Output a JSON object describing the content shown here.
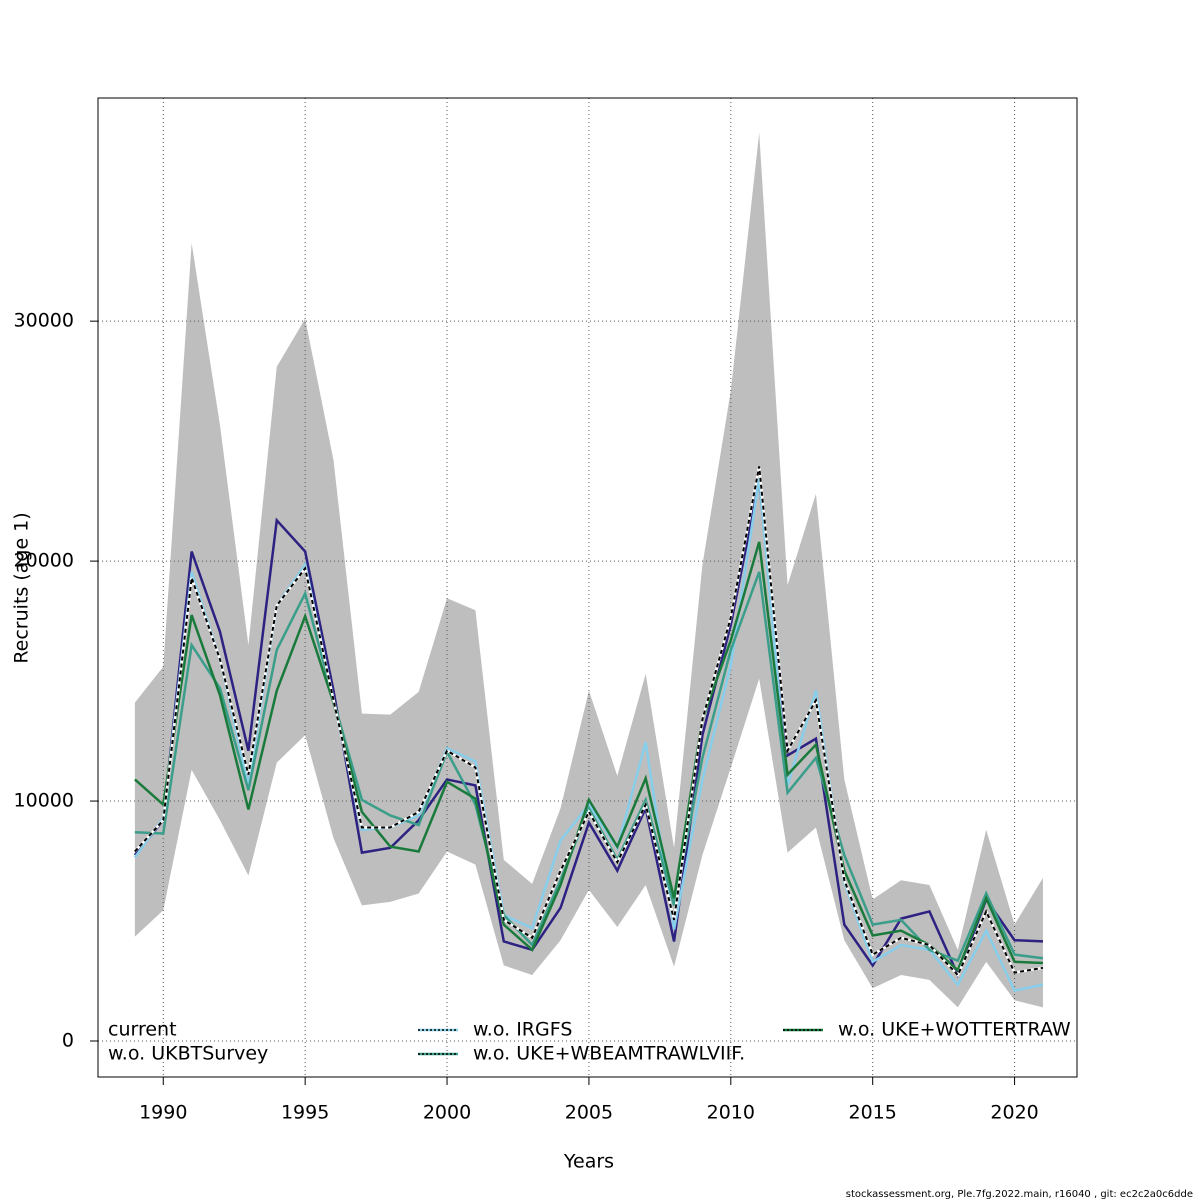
{
  "chart_data": {
    "type": "line",
    "x_label": "Years",
    "y_label": "Recruits (age 1)",
    "footer": "stockassessment.org, Ple.7fg.2022.main, r16040 , git: ec2c2a0c6dde",
    "x": [
      1989,
      1990,
      1991,
      1992,
      1993,
      1994,
      1995,
      1996,
      1997,
      1998,
      1999,
      2000,
      2001,
      2002,
      2003,
      2004,
      2005,
      2006,
      2007,
      2008,
      2009,
      2010,
      2011,
      2012,
      2013,
      2014,
      2015,
      2016,
      2017,
      2018,
      2019,
      2020,
      2021
    ],
    "xlim": [
      1987.7,
      2022.2
    ],
    "xticks": [
      1990,
      1995,
      2000,
      2005,
      2010,
      2015,
      2020
    ],
    "ylim": [
      -1500,
      39300
    ],
    "yticks": [
      0,
      10000,
      20000,
      30000
    ],
    "grid": true,
    "band": {
      "color": "#bebebe",
      "upper": [
        14100,
        15600,
        33250,
        25650,
        16500,
        28100,
        30100,
        24200,
        13650,
        13600,
        14550,
        18450,
        17950,
        7550,
        6550,
        9700,
        14600,
        11050,
        15300,
        8050,
        19850,
        27100,
        37850,
        19000,
        22800,
        10900,
        5900,
        6700,
        6500,
        3800,
        8800,
        4850,
        6800
      ],
      "lower": [
        4350,
        5450,
        11300,
        9200,
        6900,
        11600,
        12750,
        8450,
        5650,
        5800,
        6150,
        7900,
        7350,
        3150,
        2750,
        4200,
        6300,
        4750,
        6500,
        3100,
        7750,
        11400,
        15100,
        7850,
        8900,
        4200,
        2200,
        2750,
        2550,
        1400,
        3300,
        1700,
        1400
      ]
    },
    "legend": "bottom",
    "series": [
      {
        "name": "current",
        "color": "#000000",
        "style": "dashed",
        "values": [
          7900,
          9200,
          19300,
          15900,
          11100,
          18150,
          19700,
          14200,
          8900,
          8900,
          9550,
          12100,
          11400,
          5050,
          4300,
          7100,
          9550,
          7450,
          9850,
          5050,
          13400,
          17650,
          23950,
          12100,
          14200,
          6700,
          3600,
          4300,
          4000,
          2750,
          5400,
          2850,
          3050
        ]
      },
      {
        "name": "w.o. UKBTSurvey",
        "color": "#2d2182",
        "style": "solid",
        "values": [
          7750,
          9200,
          20400,
          17050,
          12100,
          21700,
          20400,
          14600,
          7850,
          8050,
          9200,
          10900,
          10650,
          4150,
          3800,
          5550,
          9100,
          7100,
          9700,
          4150,
          12750,
          17350,
          23350,
          11900,
          12600,
          4850,
          3150,
          5100,
          5400,
          2750,
          5900,
          4200,
          4150
        ]
      },
      {
        "name": "w.o. IRGFS",
        "color": "#87ceeb",
        "style": "solid",
        "values": [
          7650,
          9300,
          19550,
          15900,
          10650,
          18150,
          19850,
          14200,
          8800,
          8900,
          9400,
          12200,
          11650,
          5250,
          4700,
          8350,
          9850,
          8050,
          12450,
          4650,
          10900,
          15650,
          23450,
          10650,
          14600,
          6600,
          3300,
          4000,
          3800,
          2350,
          4600,
          2100,
          2350
        ]
      },
      {
        "name": "w.o. UKE+WBEAMTRAWLVIIF.",
        "color": "#3a9e8a",
        "style": "solid",
        "values": [
          8700,
          8650,
          16500,
          14700,
          10450,
          16300,
          18650,
          14200,
          10050,
          9400,
          9000,
          12050,
          9850,
          5250,
          4000,
          6700,
          9700,
          7550,
          10050,
          5650,
          11800,
          16300,
          19550,
          10350,
          11800,
          7750,
          4850,
          5050,
          3800,
          3350,
          6150,
          3600,
          3450
        ]
      },
      {
        "name": "w.o. UKE+WOTTERTRAW",
        "color": "#1a7a3c",
        "style": "solid",
        "values": [
          10900,
          9850,
          17750,
          14400,
          9650,
          14600,
          17700,
          14100,
          9550,
          8100,
          7900,
          10800,
          10100,
          4850,
          3800,
          6500,
          10050,
          8100,
          10950,
          5950,
          13400,
          16700,
          20800,
          11100,
          12350,
          7100,
          4400,
          4600,
          4000,
          2950,
          5950,
          3300,
          3250
        ]
      }
    ]
  }
}
